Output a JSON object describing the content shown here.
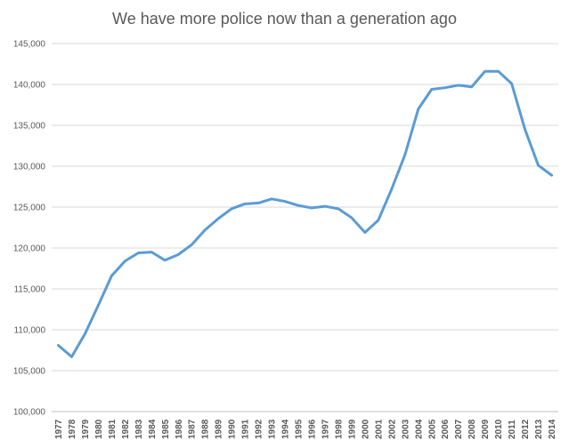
{
  "chart_data": {
    "type": "line",
    "title": "We have more police now than a generation ago",
    "xlabel": "",
    "ylabel": "",
    "ylim": [
      100000,
      145000
    ],
    "y_ticks": [
      "100,000",
      "105,000",
      "110,000",
      "115,000",
      "120,000",
      "125,000",
      "130,000",
      "135,000",
      "140,000",
      "145,000"
    ],
    "y_tick_values": [
      100000,
      105000,
      110000,
      115000,
      120000,
      125000,
      130000,
      135000,
      140000,
      145000
    ],
    "categories": [
      "1977",
      "1978",
      "1979",
      "1980",
      "1981",
      "1982",
      "1983",
      "1984",
      "1985",
      "1986",
      "1987",
      "1988",
      "1989",
      "1990",
      "1991",
      "1992",
      "1993",
      "1994",
      "1995",
      "1996",
      "1997",
      "1998",
      "1999",
      "2000",
      "2001",
      "2002",
      "2003",
      "2004",
      "2005",
      "2006",
      "2007",
      "2008",
      "2009",
      "2010",
      "2011",
      "2012",
      "2013",
      "2014"
    ],
    "grid": true,
    "line_color": "#5b9bd5",
    "series": [
      {
        "values": [
          108100,
          106700,
          109500,
          113000,
          116600,
          118400,
          119400,
          119500,
          118500,
          119200,
          120400,
          122200,
          123600,
          124800,
          125400,
          125500,
          126000,
          125700,
          125200,
          124900,
          125100,
          124800,
          123700,
          121900,
          123400,
          127200,
          131400,
          137000,
          139400,
          139600,
          139900,
          139700,
          141600,
          141600,
          140100,
          134500,
          130100,
          128900
        ]
      }
    ]
  }
}
